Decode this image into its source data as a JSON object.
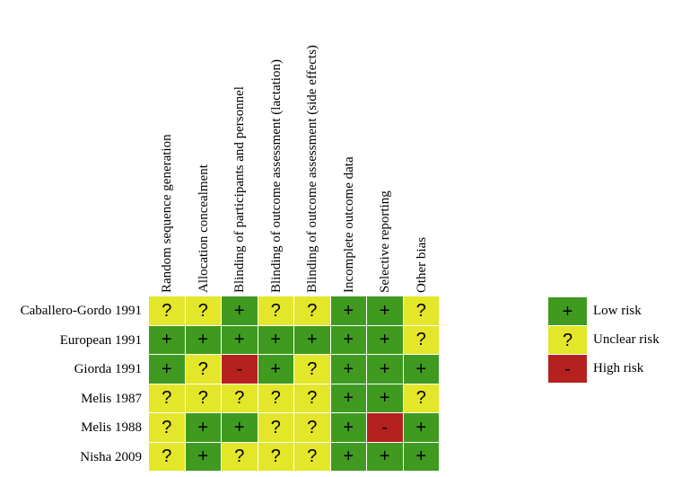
{
  "columns": [
    "Random sequence generation",
    "Allocation concealment",
    "Blinding of participants and personnel",
    "Blinding of outcome assessment (lactation)",
    "Blinding of outcome assessment (side effects)",
    "Incomplete outcome data",
    "Selective reporting",
    "Other bias"
  ],
  "rows": [
    {
      "study": "Caballero-Gordo 1991",
      "ratings": [
        "?",
        "?",
        "+",
        "?",
        "?",
        "+",
        "+",
        "?"
      ]
    },
    {
      "study": "European 1991",
      "ratings": [
        "+",
        "+",
        "+",
        "+",
        "+",
        "+",
        "+",
        "?"
      ]
    },
    {
      "study": "Giorda 1991",
      "ratings": [
        "+",
        "?",
        "-",
        "+",
        "?",
        "+",
        "+",
        "+"
      ]
    },
    {
      "study": "Melis 1987",
      "ratings": [
        "?",
        "?",
        "?",
        "?",
        "?",
        "+",
        "+",
        "?"
      ]
    },
    {
      "study": "Melis 1988",
      "ratings": [
        "?",
        "+",
        "+",
        "?",
        "?",
        "+",
        "-",
        "+"
      ]
    },
    {
      "study": "Nisha 2009",
      "ratings": [
        "?",
        "+",
        "?",
        "?",
        "?",
        "+",
        "+",
        "+"
      ]
    }
  ],
  "legend": [
    {
      "symbol": "+",
      "label": "Low risk",
      "color": "#3f9a1f"
    },
    {
      "symbol": "?",
      "label": "Unclear risk",
      "color": "#e3e629"
    },
    {
      "symbol": "-",
      "label": "High risk",
      "color": "#b5211e"
    }
  ],
  "colors": {
    "+": "#3f9a1f",
    "?": "#e3e629",
    "-": "#b5211e"
  }
}
